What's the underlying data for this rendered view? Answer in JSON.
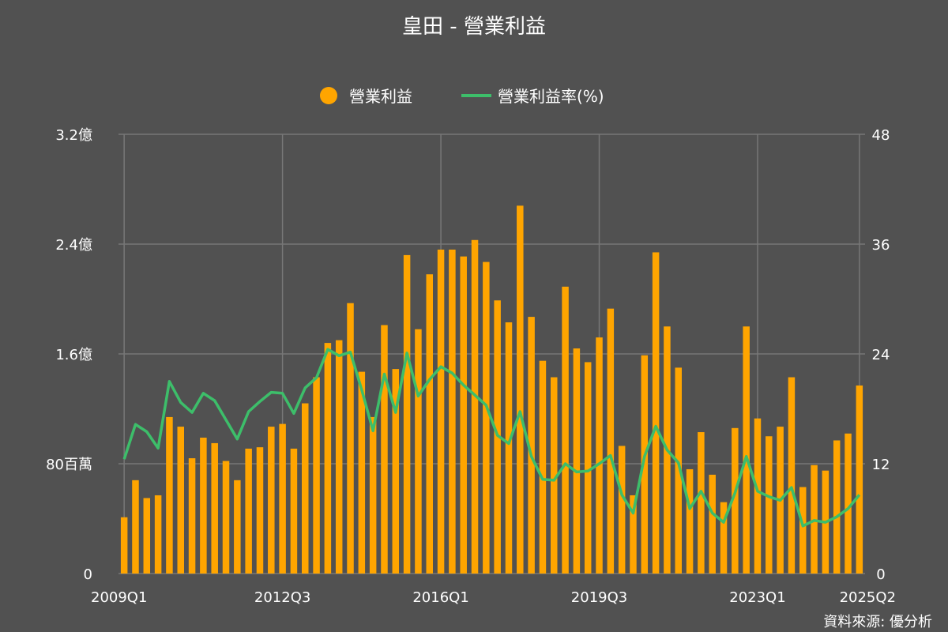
{
  "chart_data": {
    "type": "bar",
    "title": "皇田 - 營業利益",
    "source": "資料來源: 優分析",
    "legend_position": "top-center",
    "grid": true,
    "colors": {
      "bar": "#FFA500",
      "line": "#3DBE6A",
      "background": "#515151"
    },
    "categories": [
      "2009Q1",
      "2009Q2",
      "2009Q3",
      "2009Q4",
      "2010Q1",
      "2010Q2",
      "2010Q3",
      "2010Q4",
      "2011Q1",
      "2011Q2",
      "2011Q3",
      "2011Q4",
      "2012Q1",
      "2012Q2",
      "2012Q3",
      "2012Q4",
      "2013Q1",
      "2013Q2",
      "2013Q3",
      "2013Q4",
      "2014Q1",
      "2014Q2",
      "2014Q3",
      "2014Q4",
      "2015Q1",
      "2015Q2",
      "2015Q3",
      "2015Q4",
      "2016Q1",
      "2016Q2",
      "2016Q3",
      "2016Q4",
      "2017Q1",
      "2017Q2",
      "2017Q3",
      "2017Q4",
      "2018Q1",
      "2018Q2",
      "2018Q3",
      "2018Q4",
      "2019Q1",
      "2019Q2",
      "2019Q3",
      "2019Q4",
      "2020Q1",
      "2020Q2",
      "2020Q3",
      "2020Q4",
      "2021Q1",
      "2021Q2",
      "2021Q3",
      "2021Q4",
      "2022Q1",
      "2022Q2",
      "2022Q3",
      "2022Q4",
      "2023Q1",
      "2023Q2",
      "2023Q3",
      "2023Q4",
      "2024Q1",
      "2024Q2",
      "2024Q3",
      "2024Q4",
      "2025Q1",
      "2025Q2"
    ],
    "x_tick_labels": [
      "2009Q1",
      "2012Q3",
      "2016Q1",
      "2019Q3",
      "2023Q1",
      "2025Q2"
    ],
    "series": [
      {
        "name": "營業利益",
        "type": "bar",
        "axis": "left",
        "values": [
          0.41,
          0.68,
          0.55,
          0.57,
          1.14,
          1.07,
          0.84,
          0.99,
          0.95,
          0.82,
          0.68,
          0.91,
          0.92,
          1.07,
          1.09,
          0.91,
          1.24,
          1.43,
          1.68,
          1.7,
          1.97,
          1.47,
          1.14,
          1.81,
          1.49,
          2.32,
          1.78,
          2.18,
          2.36,
          2.36,
          2.31,
          2.43,
          2.27,
          1.99,
          1.83,
          2.68,
          1.87,
          1.55,
          1.43,
          2.09,
          1.64,
          1.54,
          1.72,
          1.93,
          0.93,
          0.57,
          1.59,
          2.34,
          1.8,
          1.5,
          0.76,
          1.03,
          0.72,
          0.52,
          1.06,
          1.8,
          1.13,
          1.0,
          1.07,
          1.43,
          0.63,
          0.79,
          0.75,
          0.97,
          1.02,
          1.37
        ]
      },
      {
        "name": "營業利益率(%)",
        "type": "line",
        "axis": "right",
        "values": [
          12.5,
          16.3,
          15.5,
          13.7,
          21.0,
          18.7,
          17.6,
          19.7,
          18.9,
          16.8,
          14.7,
          17.7,
          18.8,
          19.8,
          19.7,
          17.5,
          20.3,
          21.4,
          24.5,
          23.8,
          24.2,
          20.1,
          15.6,
          21.8,
          17.6,
          24.1,
          19.4,
          21.2,
          22.6,
          21.9,
          20.6,
          19.5,
          18.4,
          15.1,
          14.2,
          17.7,
          12.8,
          10.3,
          10.2,
          12.0,
          11.1,
          11.2,
          12.0,
          12.9,
          8.6,
          6.6,
          12.8,
          16.1,
          13.5,
          12.1,
          7.1,
          9.0,
          6.6,
          5.6,
          8.8,
          12.8,
          9.0,
          8.4,
          8.0,
          9.4,
          5.2,
          5.8,
          5.6,
          6.2,
          7.1,
          8.6
        ]
      }
    ],
    "y_left": {
      "label": "",
      "ylim": [
        0,
        3.2
      ],
      "ticks": [
        0,
        0.8,
        1.6,
        2.4,
        3.2
      ],
      "tick_labels": [
        "0",
        "80百萬",
        "1.6億",
        "2.4億",
        "3.2億"
      ]
    },
    "y_right": {
      "label": "",
      "ylim": [
        0,
        48
      ],
      "ticks": [
        0,
        12,
        24,
        36,
        48
      ],
      "tick_labels": [
        "0",
        "12",
        "24",
        "36",
        "48"
      ]
    }
  }
}
